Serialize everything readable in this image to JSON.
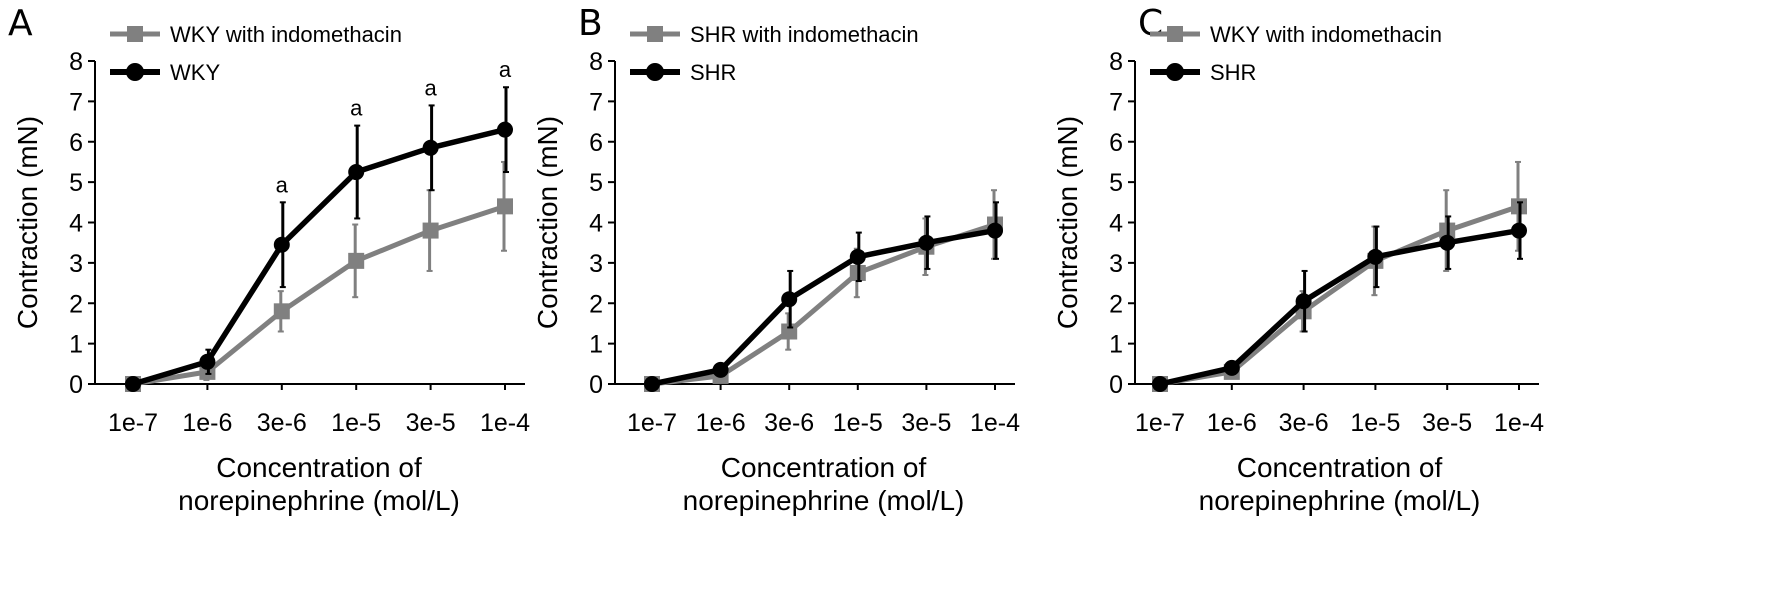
{
  "chart_data": [
    {
      "panel_label": "A",
      "type": "line",
      "xlabel": "Concentration of norepinephrine (mol/L)",
      "ylabel": "Contraction (mN)",
      "x": [
        "1e-7",
        "1e-6",
        "3e-6",
        "1e-5",
        "3e-5",
        "1e-4"
      ],
      "ylim": [
        0,
        8
      ],
      "yticks": [
        "0",
        "1",
        "2",
        "3",
        "4",
        "5",
        "6",
        "7",
        "8"
      ],
      "grid": false,
      "legend_position": "top-left",
      "series": [
        {
          "name": "WKY with indomethacin",
          "color": "#808080",
          "marker": "square",
          "values": [
            0.0,
            0.3,
            1.8,
            3.05,
            3.8,
            4.4
          ],
          "errors": [
            0.05,
            0.2,
            0.5,
            0.9,
            1.0,
            1.1
          ]
        },
        {
          "name": "WKY",
          "color": "#000000",
          "marker": "circle",
          "values": [
            0.0,
            0.55,
            3.45,
            5.25,
            5.85,
            6.3
          ],
          "errors": [
            0.05,
            0.3,
            1.05,
            1.15,
            1.05,
            1.05
          ]
        }
      ],
      "annotations": [
        {
          "text": "a",
          "x": "3e-6"
        },
        {
          "text": "a",
          "x": "1e-5"
        },
        {
          "text": "a",
          "x": "3e-5"
        },
        {
          "text": "a",
          "x": "1e-4"
        }
      ]
    },
    {
      "panel_label": "B",
      "type": "line",
      "xlabel": "Concentration of norepinephrine (mol/L)",
      "ylabel": "Contraction (mN)",
      "x": [
        "1e-7",
        "1e-6",
        "3e-6",
        "1e-5",
        "3e-5",
        "1e-4"
      ],
      "ylim": [
        0,
        8
      ],
      "yticks": [
        "0",
        "1",
        "2",
        "3",
        "4",
        "5",
        "6",
        "7",
        "8"
      ],
      "grid": false,
      "legend_position": "top-left",
      "series": [
        {
          "name": "SHR with indomethacin",
          "color": "#808080",
          "marker": "square",
          "values": [
            0.0,
            0.2,
            1.3,
            2.75,
            3.4,
            3.95
          ],
          "errors": [
            0.05,
            0.1,
            0.45,
            0.6,
            0.7,
            0.85
          ]
        },
        {
          "name": "SHR",
          "color": "#000000",
          "marker": "circle",
          "values": [
            0.0,
            0.35,
            2.1,
            3.15,
            3.5,
            3.8
          ],
          "errors": [
            0.05,
            0.15,
            0.7,
            0.6,
            0.65,
            0.7
          ]
        }
      ],
      "annotations": []
    },
    {
      "panel_label": "C",
      "type": "line",
      "xlabel": "Concentration of norepinephrine (mol/L)",
      "ylabel": "Contraction (mN)",
      "x": [
        "1e-7",
        "1e-6",
        "3e-6",
        "1e-5",
        "3e-5",
        "1e-4"
      ],
      "ylim": [
        0,
        8
      ],
      "yticks": [
        "0",
        "1",
        "2",
        "3",
        "4",
        "5",
        "6",
        "7",
        "8"
      ],
      "grid": false,
      "legend_position": "top-left",
      "series": [
        {
          "name": "WKY with indomethacin",
          "color": "#808080",
          "marker": "square",
          "values": [
            0.0,
            0.3,
            1.8,
            3.05,
            3.8,
            4.4
          ],
          "errors": [
            0.05,
            0.15,
            0.5,
            0.85,
            1.0,
            1.1
          ]
        },
        {
          "name": "SHR",
          "color": "#000000",
          "marker": "circle",
          "values": [
            0.0,
            0.4,
            2.05,
            3.15,
            3.5,
            3.8
          ],
          "errors": [
            0.05,
            0.15,
            0.75,
            0.75,
            0.65,
            0.7
          ]
        }
      ],
      "annotations": []
    }
  ]
}
